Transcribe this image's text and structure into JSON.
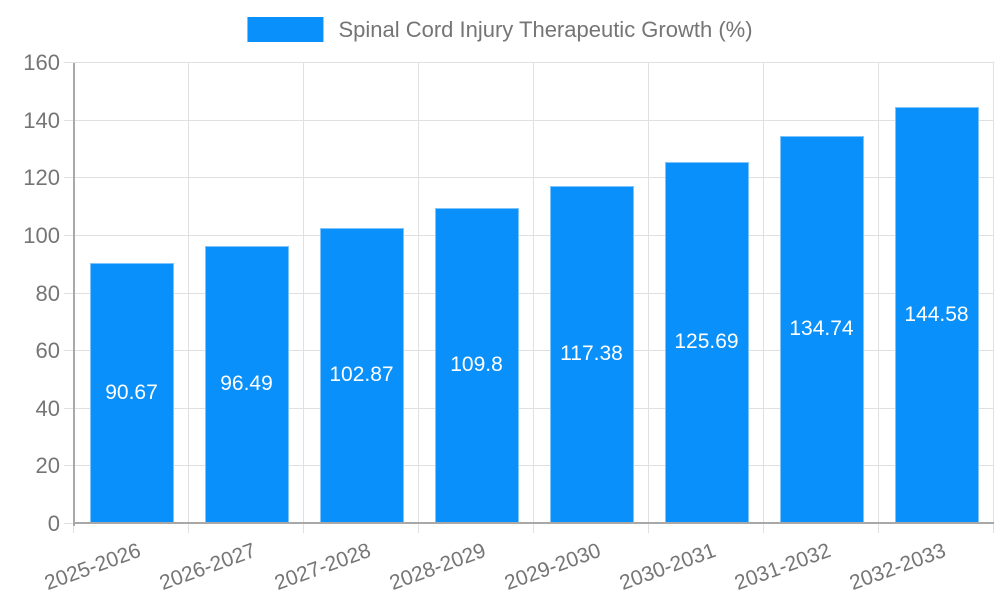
{
  "legend": {
    "label": "Spinal Cord Injury Therapeutic Growth (%)"
  },
  "colors": {
    "background": "#ffffff",
    "bar": "#0990fb",
    "bar_edge": "#7ec3f9",
    "axis": "#a8a8a8",
    "grid": "#e0e0e0",
    "text": "#757575",
    "value_label": "#ffffff"
  },
  "chart_data": {
    "type": "bar",
    "title": "Spinal Cord Injury Therapeutic Growth (%)",
    "series_name": "Spinal Cord Injury Therapeutic Growth (%)",
    "categories": [
      "2025-2026",
      "2026-2027",
      "2027-2028",
      "2028-2029",
      "2029-2030",
      "2030-2031",
      "2031-2032",
      "2032-2033"
    ],
    "values": [
      90.67,
      96.49,
      102.87,
      109.8,
      117.38,
      125.69,
      134.74,
      144.58
    ],
    "value_labels": [
      "90.67",
      "96.49",
      "102.87",
      "109.8",
      "117.38",
      "125.69",
      "134.74",
      "144.58"
    ],
    "value_label_position": "inside-center",
    "xlabel": "",
    "ylabel": "",
    "ylim": [
      0,
      160
    ],
    "yticks": [
      0,
      20,
      40,
      60,
      80,
      100,
      120,
      140,
      160
    ],
    "ytick_labels": [
      "0",
      "20",
      "40",
      "60",
      "80",
      "100",
      "120",
      "140",
      "160"
    ],
    "grid": true,
    "x_label_rotation_deg": -20,
    "legend_position": "top-center"
  }
}
